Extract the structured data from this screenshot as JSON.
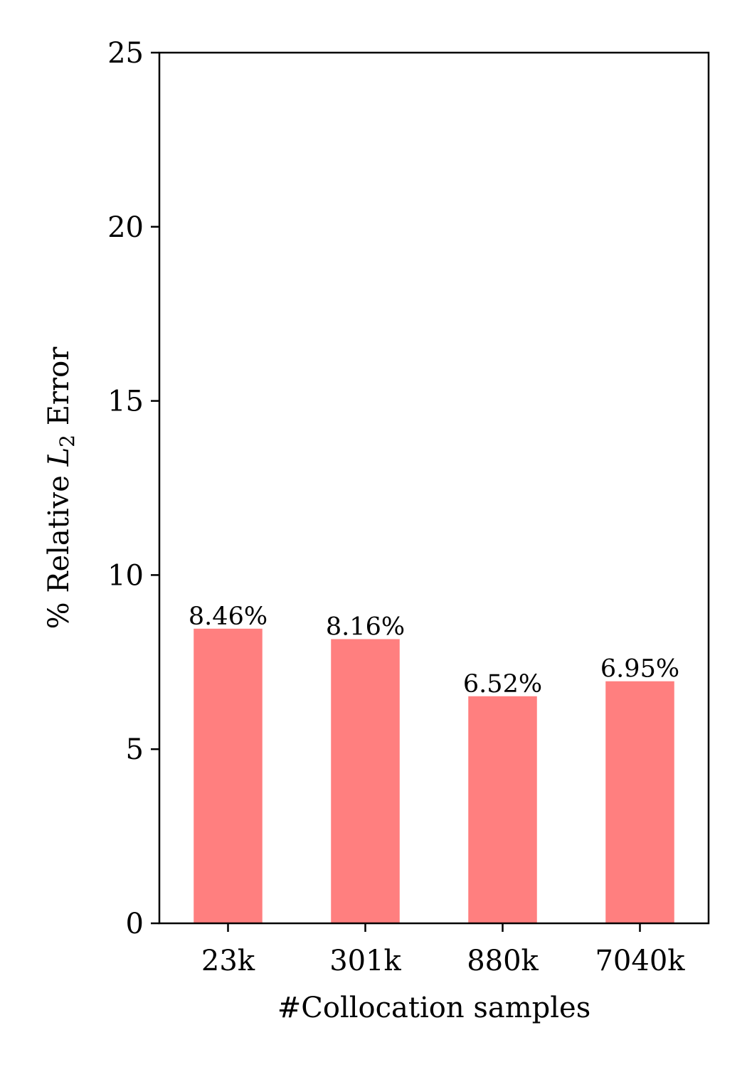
{
  "chart_data": {
    "type": "bar",
    "title": "",
    "xlabel": "#Collocation samples",
    "ylabel": {
      "prefix": "% Relative ",
      "symbol": "L",
      "subscript": "2",
      "suffix": " Error"
    },
    "categories": [
      "23k",
      "301k",
      "880k",
      "7040k"
    ],
    "values": [
      8.46,
      8.16,
      6.52,
      6.95
    ],
    "data_labels": [
      "8.46%",
      "8.16%",
      "6.52%",
      "6.95%"
    ],
    "ylim": [
      0,
      25
    ],
    "yticks": [
      0,
      5,
      10,
      15,
      20,
      25
    ],
    "ytick_labels": [
      "0",
      "5",
      "10",
      "15",
      "20",
      "25"
    ],
    "grid": false,
    "bar_color": "#ff7f7f"
  }
}
